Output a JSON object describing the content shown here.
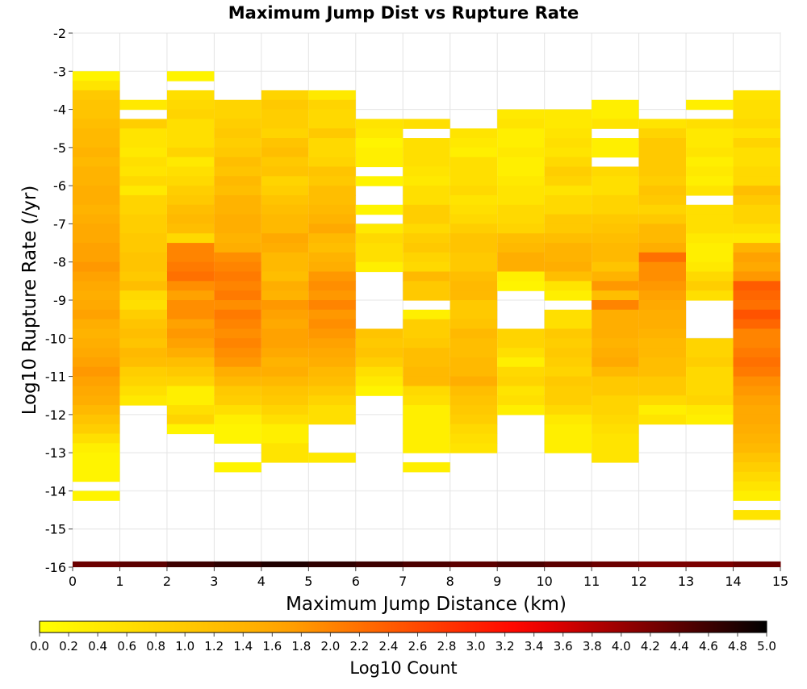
{
  "chart_data": {
    "type": "heatmap",
    "title": "Maximum Jump Dist vs Rupture Rate",
    "xlabel": "Maximum Jump Distance (km)",
    "ylabel": "Log10 Rupture Rate (/yr)",
    "xlim": [
      0,
      15
    ],
    "ylim": [
      -16,
      -2
    ],
    "x_ticks": [
      "0",
      "1",
      "2",
      "3",
      "4",
      "5",
      "6",
      "7",
      "8",
      "9",
      "10",
      "11",
      "12",
      "13",
      "14",
      "15"
    ],
    "y_ticks": [
      "-2",
      "-3",
      "-4",
      "-5",
      "-6",
      "-7",
      "-8",
      "-9",
      "-10",
      "-11",
      "-12",
      "-13",
      "-14",
      "-15",
      "-16"
    ],
    "grid": true,
    "cell_dy": 0.25,
    "colorbar": {
      "label": "Log10 Count",
      "range": [
        0,
        5
      ],
      "ticks": [
        "0.0",
        "0.2",
        "0.4",
        "0.6",
        "0.8",
        "1.0",
        "1.2",
        "1.4",
        "1.6",
        "1.8",
        "2.0",
        "2.2",
        "2.4",
        "2.6",
        "2.8",
        "3.0",
        "3.2",
        "3.4",
        "3.6",
        "3.8",
        "4.0",
        "4.2",
        "4.4",
        "4.6",
        "4.8",
        "5.0"
      ],
      "colors": [
        "#ffff00",
        "#ffa500",
        "#ff0000",
        "#000000"
      ]
    },
    "columns": [
      {
        "x": 0,
        "y_start": -3.0,
        "values": [
          0.2,
          0.5,
          1.0,
          1.1,
          1.1,
          1.2,
          1.3,
          1.3,
          1.4,
          1.3,
          1.4,
          1.4,
          1.5,
          1.5,
          1.4,
          1.5,
          1.6,
          1.6,
          1.7,
          1.7,
          1.8,
          1.7,
          1.6,
          1.5,
          1.6,
          1.7,
          1.5,
          1.4,
          1.5,
          1.6,
          1.7,
          1.8,
          1.7,
          1.6,
          1.5,
          1.3,
          1.1,
          0.9,
          0.6,
          0.3,
          0.2,
          0.2,
          0.2,
          null,
          0.2
        ]
      },
      {
        "x": 1,
        "y_start": -3.75,
        "values": [
          0.4,
          null,
          0.9,
          0.5,
          0.5,
          0.4,
          0.6,
          0.5,
          0.7,
          0.4,
          0.8,
          0.8,
          0.9,
          0.9,
          1.0,
          1.0,
          1.1,
          1.1,
          1.0,
          1.2,
          0.7,
          0.6,
          0.9,
          1.1,
          1.2,
          1.1,
          1.3,
          1.2,
          0.9,
          0.8,
          0.6,
          0.4
        ]
      },
      {
        "x": 2,
        "y_start": -3.0,
        "values": [
          0.2,
          null,
          0.6,
          0.7,
          0.8,
          0.6,
          0.6,
          0.6,
          0.8,
          0.4,
          0.6,
          0.7,
          0.9,
          1.0,
          1.2,
          1.3,
          1.2,
          0.7,
          2.0,
          2.0,
          2.1,
          2.2,
          1.9,
          1.7,
          1.9,
          1.9,
          1.7,
          1.8,
          1.7,
          1.5,
          1.2,
          1.0,
          0.8,
          0.3,
          0.3,
          0.6,
          0.8,
          0.2
        ]
      },
      {
        "x": 3,
        "y_start": -3.75,
        "values": [
          0.8,
          0.8,
          0.9,
          1.0,
          0.9,
          1.0,
          1.2,
          1.1,
          1.3,
          1.2,
          1.4,
          1.4,
          1.5,
          1.5,
          1.4,
          1.5,
          1.9,
          2.0,
          2.1,
          2.0,
          2.1,
          1.9,
          2.1,
          2.0,
          1.9,
          2.0,
          1.9,
          1.8,
          1.5,
          1.3,
          1.0,
          0.9,
          0.6,
          0.3,
          0.2,
          0.2,
          null,
          null,
          0.2
        ]
      },
      {
        "x": 4,
        "y_start": -3.5,
        "values": [
          0.8,
          1.0,
          0.9,
          0.9,
          0.8,
          1.1,
          1.2,
          1.0,
          1.1,
          0.8,
          0.9,
          1.1,
          1.2,
          1.3,
          1.3,
          1.6,
          1.5,
          1.3,
          1.3,
          1.2,
          1.5,
          1.4,
          1.8,
          1.7,
          1.6,
          1.7,
          1.7,
          1.6,
          1.4,
          1.5,
          1.3,
          1.1,
          1.0,
          0.8,
          0.6,
          0.3,
          0.3,
          0.5,
          0.5
        ]
      },
      {
        "x": 5,
        "y_start": -3.5,
        "values": [
          0.4,
          0.8,
          0.7,
          0.7,
          1.0,
          0.7,
          0.7,
          0.8,
          1.1,
          1.0,
          1.2,
          1.2,
          1.3,
          1.4,
          1.6,
          1.3,
          1.2,
          1.4,
          1.5,
          1.8,
          1.9,
          1.8,
          2.0,
          1.8,
          1.9,
          1.8,
          1.7,
          1.6,
          1.5,
          1.3,
          1.2,
          1.0,
          0.8,
          0.6,
          0.6,
          null,
          null,
          null,
          0.4
        ]
      },
      {
        "x": 6,
        "y_start": -4.25,
        "values": [
          0.5,
          0.4,
          0.2,
          0.3,
          0.3,
          null,
          0.2,
          null,
          null,
          0.2,
          null,
          0.4,
          0.7,
          0.6,
          0.6,
          0.3,
          null,
          null,
          null,
          null,
          null,
          null,
          1.1,
          1.0,
          1.1,
          0.9,
          0.6,
          0.4,
          0.2
        ]
      },
      {
        "x": 7,
        "y_start": -4.25,
        "values": [
          0.6,
          null,
          0.6,
          0.6,
          0.6,
          0.5,
          0.4,
          0.6,
          0.6,
          0.9,
          0.9,
          0.7,
          0.9,
          1.0,
          0.8,
          0.7,
          1.3,
          1.0,
          1.0,
          null,
          0.3,
          0.9,
          0.9,
          1.0,
          1.2,
          1.2,
          1.3,
          1.3,
          0.7,
          0.6,
          0.3,
          0.3,
          0.3,
          0.3,
          0.3,
          null,
          0.3
        ]
      },
      {
        "x": 8,
        "y_start": -4.5,
        "values": [
          0.5,
          0.4,
          0.3,
          0.6,
          0.6,
          0.6,
          0.7,
          0.5,
          0.6,
          0.7,
          0.9,
          1.1,
          1.1,
          1.0,
          1.0,
          1.2,
          1.3,
          1.3,
          1.0,
          1.0,
          1.1,
          1.3,
          1.2,
          1.2,
          1.3,
          1.3,
          1.5,
          1.2,
          1.1,
          1.0,
          0.9,
          0.7,
          0.6,
          0.5
        ]
      },
      {
        "x": 9,
        "y_start": -4.0,
        "values": [
          0.4,
          0.5,
          0.3,
          0.3,
          0.4,
          0.3,
          0.3,
          0.4,
          0.5,
          0.5,
          0.7,
          0.7,
          0.8,
          1.2,
          1.3,
          1.5,
          1.5,
          0.3,
          0.2,
          null,
          null,
          null,
          null,
          0.8,
          0.8,
          0.6,
          0.3,
          0.7,
          0.8,
          0.5,
          0.6,
          0.3
        ]
      },
      {
        "x": 10,
        "y_start": -4.0,
        "values": [
          0.4,
          0.4,
          0.5,
          0.6,
          0.5,
          0.7,
          0.9,
          0.8,
          0.5,
          0.7,
          0.7,
          1.0,
          1.0,
          1.2,
          1.4,
          1.4,
          1.5,
          1.2,
          0.5,
          0.3,
          null,
          0.6,
          0.6,
          1.0,
          0.9,
          1.0,
          0.9,
          0.8,
          1.0,
          0.9,
          0.9,
          0.7,
          0.4,
          0.3,
          0.3,
          0.3
        ]
      },
      {
        "x": 11,
        "y_start": -3.75,
        "values": [
          0.3,
          0.3,
          0.5,
          null,
          0.3,
          0.3,
          null,
          0.7,
          0.6,
          0.6,
          0.8,
          0.8,
          1.0,
          1.1,
          1.2,
          1.3,
          1.3,
          1.1,
          1.4,
          1.8,
          1.2,
          2.0,
          1.5,
          1.5,
          1.5,
          1.4,
          1.5,
          1.6,
          1.3,
          1.0,
          1.0,
          0.8,
          0.8,
          0.7,
          0.6,
          0.5,
          0.5,
          0.5
        ]
      },
      {
        "x": 12,
        "y_start": -4.25,
        "values": [
          0.5,
          0.8,
          1.0,
          1.0,
          1.0,
          1.0,
          0.9,
          1.1,
          1.0,
          0.8,
          1.0,
          1.3,
          1.3,
          1.5,
          2.2,
          1.9,
          1.9,
          1.8,
          1.7,
          1.6,
          1.5,
          1.5,
          1.4,
          1.3,
          1.3,
          1.2,
          1.2,
          1.0,
          1.0,
          0.7,
          0.3,
          0.5
        ]
      },
      {
        "x": 13,
        "y_start": -3.75,
        "values": [
          0.3,
          null,
          0.6,
          0.4,
          0.4,
          0.5,
          0.3,
          0.4,
          0.3,
          0.5,
          null,
          0.6,
          0.6,
          0.6,
          0.4,
          0.3,
          0.3,
          0.4,
          0.7,
          0.9,
          0.6,
          null,
          null,
          null,
          null,
          0.8,
          0.8,
          0.9,
          0.7,
          0.7,
          0.7,
          0.8,
          0.4,
          0.3
        ]
      },
      {
        "x": 14,
        "y_start": -3.5,
        "values": [
          0.5,
          0.6,
          0.6,
          0.7,
          0.5,
          0.8,
          0.6,
          0.6,
          0.7,
          0.7,
          1.2,
          1.0,
          0.8,
          0.8,
          0.6,
          0.4,
          1.4,
          1.7,
          1.6,
          1.8,
          2.4,
          2.3,
          2.2,
          2.5,
          2.3,
          2.0,
          2.0,
          2.1,
          2.2,
          2.1,
          1.9,
          1.8,
          1.7,
          1.6,
          1.6,
          1.5,
          1.4,
          1.3,
          1.1,
          0.9,
          0.7,
          0.5,
          0.3,
          null,
          0.5
        ]
      }
    ],
    "bottom_row": {
      "y_start": -16.0,
      "height": 0.15,
      "values": [
        4.3,
        4.4,
        4.6,
        4.7,
        4.8,
        4.7,
        4.6,
        4.5,
        4.4,
        4.5,
        4.4,
        4.3,
        4.2,
        4.2,
        4.3
      ]
    }
  }
}
